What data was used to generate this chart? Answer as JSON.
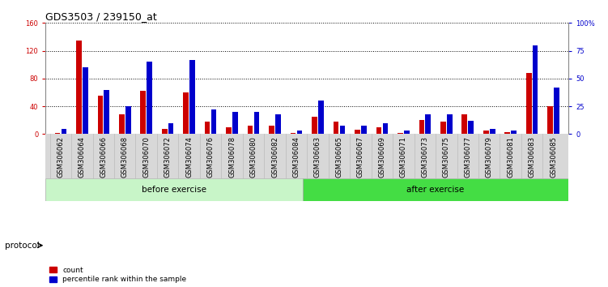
{
  "title": "GDS3503 / 239150_at",
  "categories": [
    "GSM306062",
    "GSM306064",
    "GSM306066",
    "GSM306068",
    "GSM306070",
    "GSM306072",
    "GSM306074",
    "GSM306076",
    "GSM306078",
    "GSM306080",
    "GSM306082",
    "GSM306084",
    "GSM306063",
    "GSM306065",
    "GSM306067",
    "GSM306069",
    "GSM306071",
    "GSM306073",
    "GSM306075",
    "GSM306077",
    "GSM306079",
    "GSM306081",
    "GSM306083",
    "GSM306085"
  ],
  "count_values": [
    2,
    135,
    55,
    28,
    62,
    8,
    60,
    18,
    10,
    12,
    12,
    2,
    25,
    18,
    6,
    10,
    2,
    20,
    18,
    28,
    5,
    3,
    88,
    40
  ],
  "percentile_values_pct": [
    5,
    60,
    40,
    25,
    65,
    10,
    67,
    22,
    20,
    20,
    18,
    3,
    30,
    8,
    8,
    10,
    3,
    18,
    18,
    12,
    5,
    3,
    80,
    42
  ],
  "before_count": 12,
  "after_count": 12,
  "group_labels": [
    "before exercise",
    "after exercise"
  ],
  "left_ylim": [
    0,
    160
  ],
  "right_ylim": [
    0,
    100
  ],
  "left_yticks": [
    0,
    40,
    80,
    120,
    160
  ],
  "right_yticks": [
    0,
    25,
    50,
    75,
    100
  ],
  "right_yticklabels": [
    "0",
    "25",
    "50",
    "75",
    "100%"
  ],
  "bar_color_count": "#cc0000",
  "bar_color_pct": "#0000cc",
  "background_color": "#ffffff",
  "grid_color": "#000000",
  "title_fontsize": 9,
  "tick_fontsize": 6,
  "protocol_label": "protocol",
  "legend_count_label": "count",
  "legend_pct_label": "percentile rank within the sample",
  "before_bg": "#c8f5c8",
  "after_bg": "#44dd44",
  "xtick_bg": "#d8d8d8"
}
